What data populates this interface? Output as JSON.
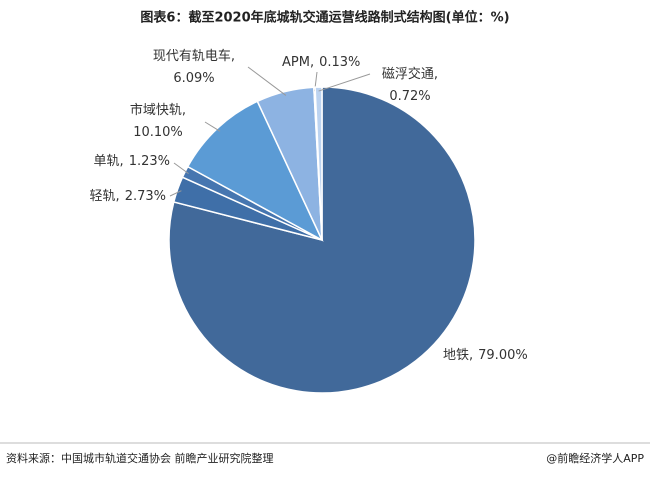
{
  "chart_data": {
    "type": "pie",
    "title": "图表6：截至2020年底城轨交通运营线路制式结构图(单位：%)",
    "categories": [
      "地铁,",
      "轻轨,",
      "单轨,",
      "市域快轨,",
      "现代有轨电车,",
      "APM,",
      "磁浮交通,"
    ],
    "values": [
      79.0,
      2.73,
      1.23,
      10.1,
      6.09,
      0.13,
      0.72
    ],
    "value_labels": [
      "79.00%",
      "2.73%",
      "1.23%",
      "10.10%",
      "6.09%",
      "0.13%",
      "0.72%"
    ],
    "colors": [
      "#41699a",
      "#3f6fa8",
      "#4676b0",
      "#5b9bd5",
      "#8db3e2",
      "#a9c5ea",
      "#bcd3f0"
    ]
  },
  "footer": {
    "source": "资料来源：中国城市轨道交通协会 前瞻产业研究院整理",
    "credit": "@前瞻经济学人APP"
  }
}
